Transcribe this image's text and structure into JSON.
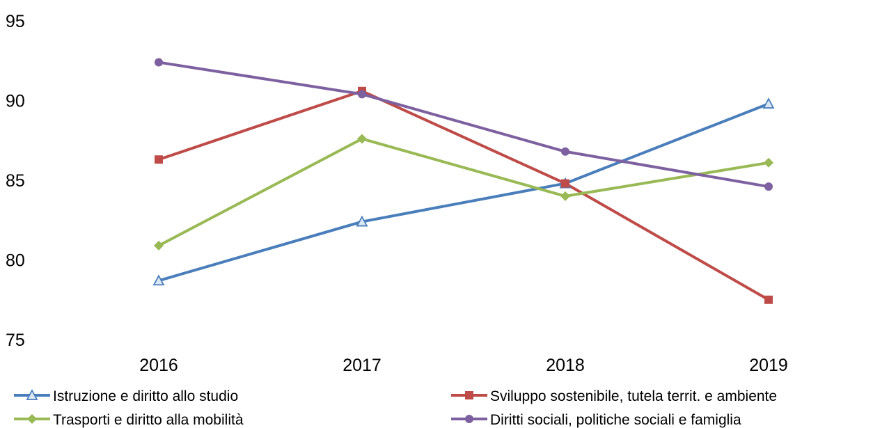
{
  "chart_data": {
    "type": "line",
    "title": "",
    "xlabel": "",
    "ylabel": "",
    "categories": [
      "2016",
      "2017",
      "2018",
      "2019"
    ],
    "ylim": [
      75,
      95
    ],
    "yticks": [
      75,
      80,
      85,
      90,
      95
    ],
    "grid": false,
    "legend_position": "bottom",
    "series": [
      {
        "name": "Istruzione e diritto allo studio",
        "values": [
          78.7,
          82.4,
          84.8,
          89.8
        ],
        "color": "#4A7EBB",
        "marker": "triangle"
      },
      {
        "name": "Sviluppo sostenibile, tutela territ. e ambiente",
        "values": [
          86.3,
          90.6,
          84.8,
          77.5
        ],
        "color": "#BE4B48",
        "marker": "square"
      },
      {
        "name": "Trasporti e diritto alla mobilità",
        "values": [
          80.9,
          87.6,
          84.0,
          86.1
        ],
        "color": "#98B954",
        "marker": "diamond"
      },
      {
        "name": "Diritti sociali, politiche sociali e famiglia",
        "values": [
          92.4,
          90.4,
          86.8,
          84.6
        ],
        "color": "#7D60A0",
        "marker": "circle"
      }
    ]
  }
}
